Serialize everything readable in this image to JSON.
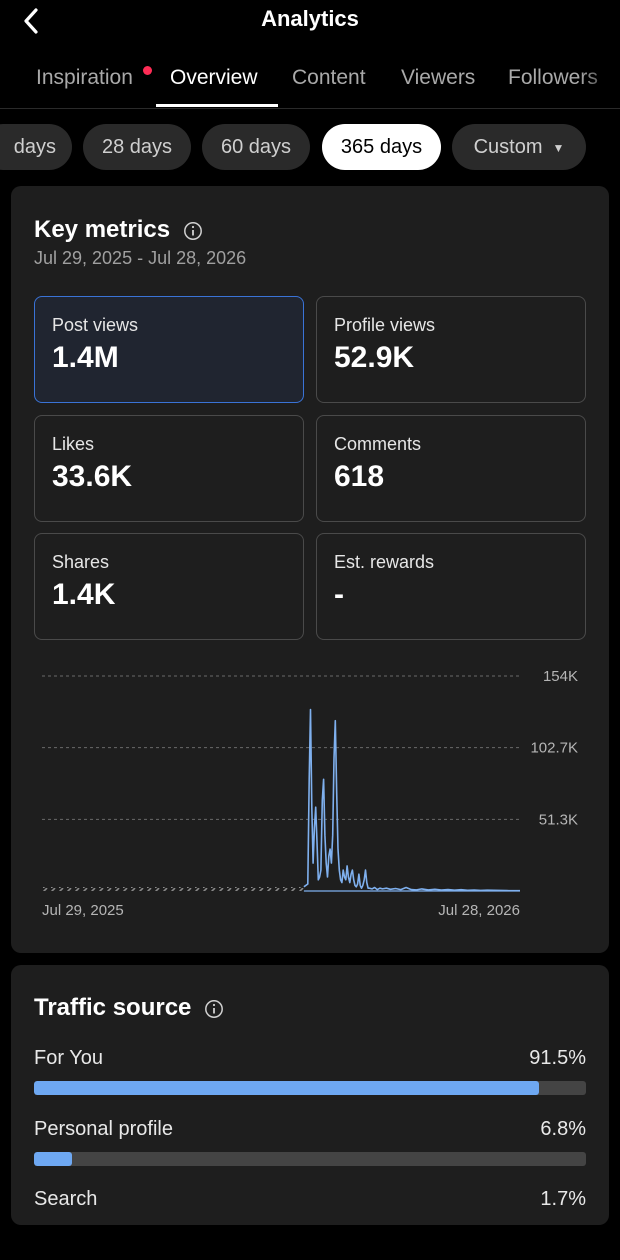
{
  "header": {
    "title": "Analytics"
  },
  "tabs": [
    {
      "label": "Inspiration",
      "notification": true
    },
    {
      "label": "Overview",
      "active": true
    },
    {
      "label": "Content"
    },
    {
      "label": "Viewers"
    },
    {
      "label": "Followers"
    }
  ],
  "range_chips": [
    {
      "label": "days"
    },
    {
      "label": "28 days"
    },
    {
      "label": "60 days"
    },
    {
      "label": "365 days",
      "active": true
    },
    {
      "label": "Custom"
    }
  ],
  "key_metrics": {
    "title": "Key metrics",
    "date_range": "Jul 29, 2025 - Jul 28, 2026",
    "items": [
      {
        "label": "Post views",
        "value": "1.4M",
        "selected": true
      },
      {
        "label": "Profile views",
        "value": "52.9K"
      },
      {
        "label": "Likes",
        "value": "33.6K"
      },
      {
        "label": "Comments",
        "value": "618"
      },
      {
        "label": "Shares",
        "value": "1.4K"
      },
      {
        "label": "Est. rewards",
        "value": "-"
      }
    ]
  },
  "chart_data": {
    "type": "line",
    "x_start_label": "Jul 29, 2025",
    "x_end_label": "Jul 28, 2026",
    "y_tick_labels": [
      "154K",
      "102.7K",
      "51.3K"
    ],
    "y_ticks": [
      154000,
      102700,
      51300
    ],
    "ylim": [
      0,
      154000
    ],
    "no_data_before_day": 200,
    "total_days": 365,
    "series": [
      {
        "color": "#7fb0ee",
        "points": [
          [
            200,
            3000
          ],
          [
            203,
            5000
          ],
          [
            204,
            80000
          ],
          [
            205,
            130000
          ],
          [
            206,
            60000
          ],
          [
            207,
            20000
          ],
          [
            208,
            45000
          ],
          [
            209,
            60000
          ],
          [
            210,
            35000
          ],
          [
            211,
            8000
          ],
          [
            212,
            10000
          ],
          [
            213,
            15000
          ],
          [
            214,
            65000
          ],
          [
            215,
            80000
          ],
          [
            216,
            40000
          ],
          [
            217,
            20000
          ],
          [
            218,
            10000
          ],
          [
            219,
            25000
          ],
          [
            220,
            30000
          ],
          [
            221,
            20000
          ],
          [
            222,
            40000
          ],
          [
            223,
            95000
          ],
          [
            224,
            122000
          ],
          [
            225,
            70000
          ],
          [
            226,
            30000
          ],
          [
            227,
            15000
          ],
          [
            228,
            8000
          ],
          [
            229,
            6000
          ],
          [
            230,
            15000
          ],
          [
            231,
            10000
          ],
          [
            232,
            8000
          ],
          [
            233,
            18000
          ],
          [
            234,
            10000
          ],
          [
            235,
            6000
          ],
          [
            236,
            12000
          ],
          [
            237,
            15000
          ],
          [
            238,
            8000
          ],
          [
            239,
            4000
          ],
          [
            240,
            3000
          ],
          [
            241,
            5000
          ],
          [
            242,
            12000
          ],
          [
            243,
            4000
          ],
          [
            244,
            2000
          ],
          [
            245,
            4000
          ],
          [
            246,
            8000
          ],
          [
            247,
            15000
          ],
          [
            248,
            6000
          ],
          [
            249,
            2000
          ],
          [
            250,
            2000
          ],
          [
            252,
            1500
          ],
          [
            254,
            2500
          ],
          [
            256,
            1000
          ],
          [
            258,
            2000
          ],
          [
            260,
            1500
          ],
          [
            263,
            2000
          ],
          [
            266,
            1200
          ],
          [
            270,
            1800
          ],
          [
            274,
            1000
          ],
          [
            278,
            2500
          ],
          [
            282,
            1000
          ],
          [
            286,
            800
          ],
          [
            290,
            1500
          ],
          [
            295,
            800
          ],
          [
            300,
            1200
          ],
          [
            305,
            700
          ],
          [
            310,
            1000
          ],
          [
            315,
            600
          ],
          [
            320,
            900
          ],
          [
            325,
            500
          ],
          [
            330,
            700
          ],
          [
            335,
            400
          ],
          [
            340,
            600
          ],
          [
            345,
            500
          ],
          [
            350,
            400
          ],
          [
            355,
            300
          ],
          [
            360,
            200
          ],
          [
            365,
            200
          ]
        ]
      }
    ]
  },
  "traffic_source": {
    "title": "Traffic source",
    "items": [
      {
        "label": "For You",
        "value": "91.5%",
        "fraction": 0.915
      },
      {
        "label": "Personal profile",
        "value": "6.8%",
        "fraction": 0.068
      },
      {
        "label": "Search",
        "value": "1.7%",
        "fraction": 0.017
      }
    ]
  }
}
